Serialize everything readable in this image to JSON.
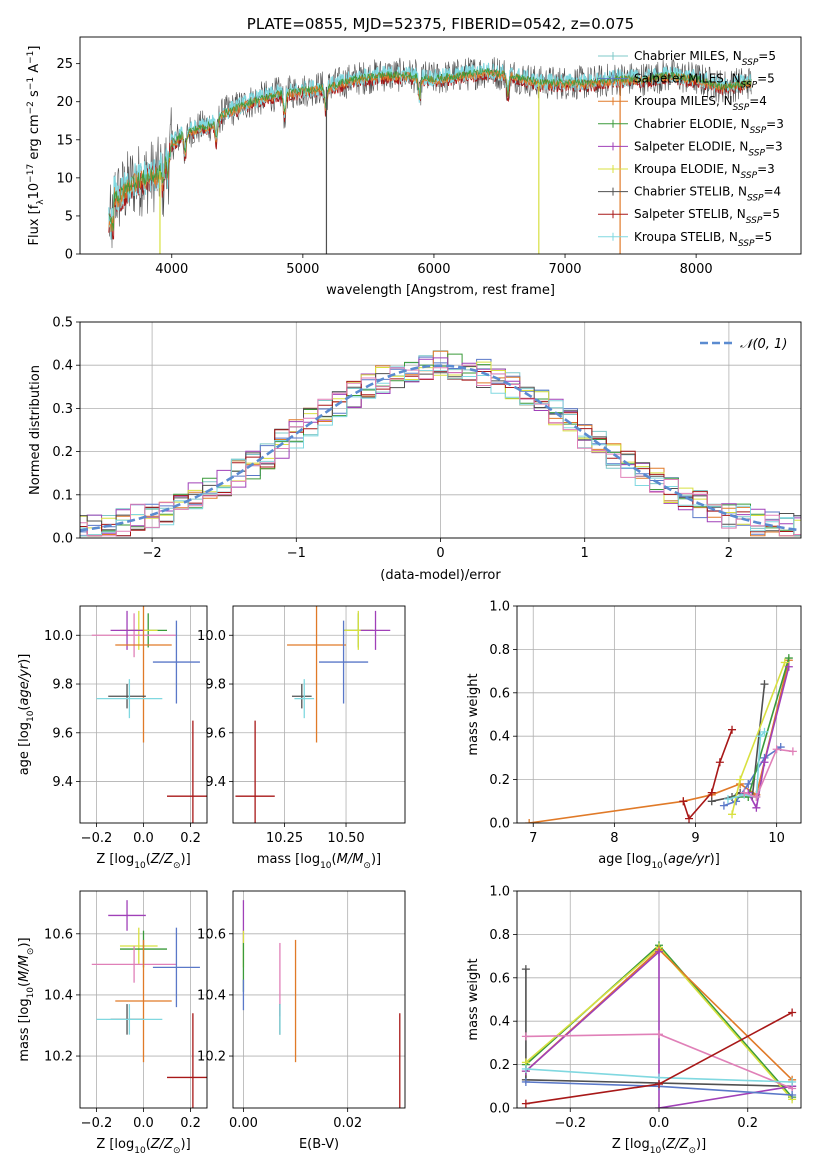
{
  "colors": {
    "grid": "#b0b0b0",
    "axis": "#000000",
    "normal_curve": "#5b8bd0",
    "series": [
      "#7fc8c8",
      "#5a78c8",
      "#e07a28",
      "#3a9a3a",
      "#a040b8",
      "#d8e040",
      "#505050",
      "#a81818",
      "#80d8e0",
      "#e080b8"
    ]
  },
  "chart_data": [
    {
      "id": "spectrum",
      "type": "line",
      "title": "PLATE=0855, MJD=52375, FIBERID=0542, z=0.075",
      "xlabel": "wavelength [Angstrom, rest frame]",
      "ylabel": "Flux [f_λ10^−17 erg cm^−2 s^−1 A^−1]",
      "xlim": [
        3300,
        8800
      ],
      "ylim": [
        0,
        28.5
      ],
      "xticks": [
        4000,
        5000,
        6000,
        7000,
        8000
      ],
      "yticks": [
        0,
        5,
        10,
        15,
        20,
        25
      ],
      "grid": false,
      "legend_position": "right",
      "legend": [
        {
          "label": "Chabrier MILES, N_SSP=5",
          "color": "#7fc8c8"
        },
        {
          "label": "Salpeter MILES, N_SSP=5",
          "color": "#5a78c8"
        },
        {
          "label": "Kroupa MILES, N_SSP=4",
          "color": "#e07a28"
        },
        {
          "label": "Chabrier ELODIE, N_SSP=3",
          "color": "#3a9a3a"
        },
        {
          "label": "Salpeter ELODIE, N_SSP=3",
          "color": "#a040b8"
        },
        {
          "label": "Kroupa ELODIE, N_SSP=3",
          "color": "#d8e040"
        },
        {
          "label": "Chabrier STELIB, N_SSP=4",
          "color": "#505050"
        },
        {
          "label": "Salpeter STELIB, N_SSP=5",
          "color": "#a81818"
        },
        {
          "label": "Kroupa STELIB, N_SSP=5",
          "color": "#80d8e0"
        }
      ],
      "continuum_x": [
        3500,
        3600,
        3700,
        3800,
        3900,
        4000,
        4100,
        4200,
        4300,
        4400,
        4600,
        4800,
        5000,
        5200,
        5400,
        5600,
        5800,
        6000,
        6200,
        6400,
        6600,
        6800,
        7000,
        7200,
        7400,
        7600,
        7800,
        8000,
        8200,
        8400
      ],
      "continuum_y": [
        8.5,
        7.5,
        9.5,
        10.0,
        10.5,
        14.5,
        16.0,
        16.5,
        17.0,
        18.5,
        20.0,
        21.0,
        21.5,
        22.0,
        23.0,
        23.5,
        23.5,
        23.0,
        23.5,
        24.0,
        23.5,
        22.5,
        22.5,
        22.5,
        23.0,
        23.0,
        23.5,
        23.0,
        22.0,
        22.5
      ]
    },
    {
      "id": "residuals",
      "type": "step",
      "xlabel": "(data-model)/error",
      "ylabel": "Normed distribution",
      "xlim": [
        -2.5,
        2.5
      ],
      "ylim": [
        0,
        0.5
      ],
      "xticks": [
        -2,
        -1,
        0,
        1,
        2
      ],
      "yticks": [
        0.0,
        0.1,
        0.2,
        0.3,
        0.4,
        0.5
      ],
      "grid": true,
      "legend_position": "top-right",
      "legend": [
        {
          "label": "𝒩(0, 1)",
          "color": "#5b8bd0"
        }
      ]
    },
    {
      "id": "age-vs-Z",
      "type": "scatter",
      "xlabel": "Z [log10(Z/Z☉)]",
      "ylabel": "age  [log10(age/yr)]",
      "xlim": [
        -0.27,
        0.27
      ],
      "ylim": [
        9.23,
        10.12
      ],
      "xticks": [
        -0.2,
        0.0,
        0.2
      ],
      "yticks": [
        9.4,
        9.6,
        9.8,
        10.0
      ],
      "grid": true,
      "points": [
        {
          "x": 0.02,
          "xerr": 0.08,
          "y": 10.02,
          "yerr": 0.07,
          "color": "#3a9a3a"
        },
        {
          "x": -0.02,
          "xerr": 0.08,
          "y": 10.02,
          "yerr": 0.08,
          "color": "#d8e040"
        },
        {
          "x": -0.04,
          "xerr": 0.18,
          "y": 10.0,
          "yerr": 0.09,
          "color": "#e080b8"
        },
        {
          "x": -0.07,
          "xerr": 0.07,
          "y": 10.02,
          "yerr": 0.08,
          "color": "#a040b8"
        },
        {
          "x": 0.0,
          "xerr": 0.12,
          "y": 9.96,
          "yerr": 0.4,
          "color": "#e07a28"
        },
        {
          "x": 0.14,
          "xerr": 0.1,
          "y": 9.89,
          "yerr": 0.17,
          "color": "#5a78c8"
        },
        {
          "x": -0.07,
          "xerr": 0.08,
          "y": 9.75,
          "yerr": 0.05,
          "color": "#505050"
        },
        {
          "x": -0.06,
          "xerr": 0.14,
          "y": 9.74,
          "yerr": 0.08,
          "color": "#80d8e0"
        },
        {
          "x": 0.21,
          "xerr": 0.11,
          "y": 9.34,
          "yerr": 0.31,
          "color": "#a81818"
        }
      ]
    },
    {
      "id": "age-vs-mass",
      "type": "scatter",
      "xlabel": "mass [log10(M/M☉)]",
      "ylabel": "",
      "xlim": [
        10.04,
        10.74
      ],
      "ylim": [
        9.23,
        10.12
      ],
      "xticks": [
        10.25,
        10.5
      ],
      "yticks": [
        9.4,
        9.6,
        9.8,
        10.0
      ],
      "grid": true,
      "points": [
        {
          "x": 10.55,
          "xerr": 0.06,
          "y": 10.02,
          "yerr": 0.07,
          "color": "#3a9a3a"
        },
        {
          "x": 10.55,
          "xerr": 0.06,
          "y": 10.02,
          "yerr": 0.08,
          "color": "#d8e040"
        },
        {
          "x": 10.62,
          "xerr": 0.06,
          "y": 10.02,
          "yerr": 0.08,
          "color": "#a040b8"
        },
        {
          "x": 10.38,
          "xerr": 0.12,
          "y": 9.96,
          "yerr": 0.4,
          "color": "#e07a28"
        },
        {
          "x": 10.49,
          "xerr": 0.1,
          "y": 9.89,
          "yerr": 0.17,
          "color": "#5a78c8"
        },
        {
          "x": 10.32,
          "xerr": 0.04,
          "y": 9.75,
          "yerr": 0.05,
          "color": "#505050"
        },
        {
          "x": 10.33,
          "xerr": 0.04,
          "y": 9.74,
          "yerr": 0.08,
          "color": "#80d8e0"
        },
        {
          "x": 10.13,
          "xerr": 0.08,
          "y": 9.34,
          "yerr": 0.31,
          "color": "#a81818"
        }
      ]
    },
    {
      "id": "weight-vs-age",
      "type": "line",
      "xlabel": "age  [log10(age/yr)]",
      "ylabel": "mass weight",
      "xlim": [
        6.8,
        10.3
      ],
      "ylim": [
        0,
        1.0
      ],
      "xticks": [
        7,
        8,
        9,
        10
      ],
      "yticks": [
        0.0,
        0.2,
        0.4,
        0.6,
        0.8,
        1.0
      ],
      "grid": true,
      "series": [
        {
          "color": "#e07a28",
          "x": [
            6.95,
            8.85,
            9.2,
            9.55,
            9.75,
            10.15
          ],
          "y": [
            0.0,
            0.1,
            0.13,
            0.18,
            0.13,
            0.75
          ]
        },
        {
          "color": "#a81818",
          "x": [
            8.85,
            8.92,
            9.2,
            9.3,
            9.45
          ],
          "y": [
            0.1,
            0.02,
            0.14,
            0.28,
            0.43
          ]
        },
        {
          "color": "#505050",
          "x": [
            9.2,
            9.45,
            9.55,
            9.7,
            9.85
          ],
          "y": [
            0.1,
            0.12,
            0.14,
            0.12,
            0.64
          ]
        },
        {
          "color": "#5a78c8",
          "x": [
            9.35,
            9.5,
            9.65,
            9.85,
            10.05
          ],
          "y": [
            0.08,
            0.1,
            0.18,
            0.3,
            0.35
          ]
        },
        {
          "color": "#3a9a3a",
          "x": [
            9.5,
            9.65,
            10.15
          ],
          "y": [
            0.12,
            0.12,
            0.76
          ]
        },
        {
          "color": "#a040b8",
          "x": [
            9.65,
            9.75,
            9.85,
            10.15
          ],
          "y": [
            0.14,
            0.07,
            0.28,
            0.72
          ]
        },
        {
          "color": "#d8e040",
          "x": [
            9.45,
            9.55,
            10.1
          ],
          "y": [
            0.04,
            0.2,
            0.74
          ]
        },
        {
          "color": "#80d8e0",
          "x": [
            9.4,
            9.6,
            9.75,
            9.8,
            9.85
          ],
          "y": [
            0.11,
            0.13,
            0.12,
            0.4,
            0.42
          ]
        },
        {
          "color": "#e080b8",
          "x": [
            9.6,
            9.75,
            10.0,
            10.2
          ],
          "y": [
            0.14,
            0.12,
            0.34,
            0.33
          ]
        }
      ]
    },
    {
      "id": "mass-vs-Z",
      "type": "scatter",
      "xlabel": "Z [log10(Z/Z☉)]",
      "ylabel": "mass [log10(M/M☉)]",
      "xlim": [
        -0.27,
        0.27
      ],
      "ylim": [
        10.03,
        10.74
      ],
      "xticks": [
        -0.2,
        0.0,
        0.2
      ],
      "yticks": [
        10.2,
        10.4,
        10.6
      ],
      "grid": true,
      "points": [
        {
          "x": -0.07,
          "xerr": 0.08,
          "y": 10.66,
          "yerr": 0.05,
          "color": "#a040b8"
        },
        {
          "x": -0.02,
          "xerr": 0.08,
          "y": 10.56,
          "yerr": 0.06,
          "color": "#d8e040"
        },
        {
          "x": 0.0,
          "xerr": 0.1,
          "y": 10.55,
          "yerr": 0.06,
          "color": "#3a9a3a"
        },
        {
          "x": -0.04,
          "xerr": 0.18,
          "y": 10.5,
          "yerr": 0.06,
          "color": "#e080b8"
        },
        {
          "x": 0.14,
          "xerr": 0.1,
          "y": 10.49,
          "yerr": 0.13,
          "color": "#5a78c8"
        },
        {
          "x": 0.0,
          "xerr": 0.12,
          "y": 10.38,
          "yerr": 0.2,
          "color": "#e07a28"
        },
        {
          "x": -0.07,
          "xerr": 0.07,
          "y": 10.32,
          "yerr": 0.05,
          "color": "#505050"
        },
        {
          "x": -0.06,
          "xerr": 0.14,
          "y": 10.32,
          "yerr": 0.05,
          "color": "#80d8e0"
        },
        {
          "x": 0.21,
          "xerr": 0.11,
          "y": 10.13,
          "yerr": 0.21,
          "color": "#a81818"
        }
      ]
    },
    {
      "id": "mass-vs-EBV",
      "type": "scatter",
      "xlabel": "E(B-V)",
      "ylabel": "",
      "xlim": [
        -0.002,
        0.031
      ],
      "ylim": [
        10.03,
        10.74
      ],
      "xticks": [
        0.0,
        0.02
      ],
      "yticks": [
        10.2,
        10.4,
        10.6
      ],
      "grid": true,
      "points": [
        {
          "x": 0.0,
          "xerr": 0.0,
          "y": 10.64,
          "yerr": 0.07,
          "color": "#a040b8"
        },
        {
          "x": 0.0,
          "xerr": 0.0,
          "y": 10.55,
          "yerr": 0.06,
          "color": "#d8e040"
        },
        {
          "x": 0.0,
          "xerr": 0.0,
          "y": 10.49,
          "yerr": 0.08,
          "color": "#3a9a3a"
        },
        {
          "x": 0.0,
          "xerr": 0.0,
          "y": 10.4,
          "yerr": 0.05,
          "color": "#5a78c8"
        },
        {
          "x": 0.007,
          "xerr": 0.0,
          "y": 10.45,
          "yerr": 0.12,
          "color": "#e080b8"
        },
        {
          "x": 0.007,
          "xerr": 0.0,
          "y": 10.32,
          "yerr": 0.05,
          "color": "#505050"
        },
        {
          "x": 0.007,
          "xerr": 0.0,
          "y": 10.32,
          "yerr": 0.05,
          "color": "#80d8e0"
        },
        {
          "x": 0.01,
          "xerr": 0.0,
          "y": 10.38,
          "yerr": 0.2,
          "color": "#e07a28"
        },
        {
          "x": 0.03,
          "xerr": 0.0,
          "y": 10.13,
          "yerr": 0.21,
          "color": "#a81818"
        }
      ]
    },
    {
      "id": "weight-vs-Z",
      "type": "line",
      "xlabel": "Z [log10(Z/Z☉)]",
      "ylabel": "mass weight",
      "xlim": [
        -0.32,
        0.32
      ],
      "ylim": [
        0,
        1.0
      ],
      "xticks": [
        -0.2,
        0.0,
        0.2
      ],
      "yticks": [
        0.0,
        0.2,
        0.4,
        0.6,
        0.8,
        1.0
      ],
      "grid": true,
      "series": [
        {
          "color": "#505050",
          "x": [
            -0.3,
            -0.3,
            0.3
          ],
          "y": [
            0.64,
            0.13,
            0.1
          ]
        },
        {
          "color": "#3a9a3a",
          "x": [
            -0.3,
            0.0,
            0.3
          ],
          "y": [
            0.2,
            0.75,
            0.05
          ]
        },
        {
          "color": "#d8e040",
          "x": [
            -0.3,
            0.0,
            0.3
          ],
          "y": [
            0.21,
            0.74,
            0.04
          ]
        },
        {
          "color": "#e07a28",
          "x": [
            -0.3,
            0.0,
            0.3
          ],
          "y": [
            0.17,
            0.73,
            0.13
          ]
        },
        {
          "color": "#a040b8",
          "x": [
            -0.3,
            0.0,
            0.0,
            0.3
          ],
          "y": [
            0.17,
            0.72,
            0.0,
            0.1
          ]
        },
        {
          "color": "#e080b8",
          "x": [
            -0.3,
            0.0,
            0.3
          ],
          "y": [
            0.33,
            0.34,
            0.09
          ]
        },
        {
          "color": "#80d8e0",
          "x": [
            -0.3,
            0.0,
            0.3
          ],
          "y": [
            0.18,
            0.14,
            0.12
          ]
        },
        {
          "color": "#5a78c8",
          "x": [
            -0.3,
            0.0,
            0.3
          ],
          "y": [
            0.12,
            0.1,
            0.06
          ]
        },
        {
          "color": "#a81818",
          "x": [
            -0.3,
            0.0,
            0.3
          ],
          "y": [
            0.02,
            0.11,
            0.44
          ]
        }
      ]
    }
  ]
}
